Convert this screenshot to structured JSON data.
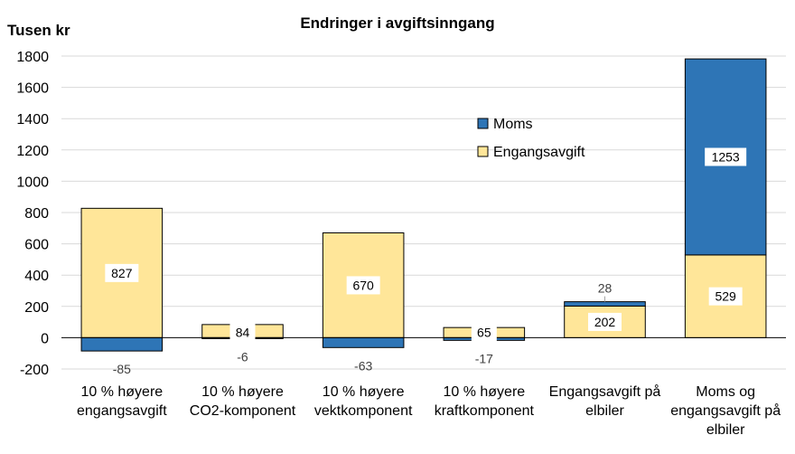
{
  "chart_data": {
    "type": "bar",
    "stacked": true,
    "title": "Endringer  i avgiftsinngang",
    "ylabel": "Tusen kr",
    "ylim": [
      -200,
      1800
    ],
    "yticks": [
      -200,
      0,
      200,
      400,
      600,
      800,
      1000,
      1200,
      1400,
      1600,
      1800
    ],
    "grid": true,
    "legend_position": "center-right",
    "categories": [
      [
        "10 % høyere",
        "engangsavgift"
      ],
      [
        "10 % høyere",
        "CO2-komponent"
      ],
      [
        "10 % høyere",
        "vektkomponent"
      ],
      [
        "10 % høyere",
        "kraftkomponent"
      ],
      [
        "Engangsavgift på",
        "elbiler"
      ],
      [
        "Moms og",
        "engangsavgift på",
        "elbiler"
      ]
    ],
    "series": [
      {
        "name": "Engangsavgift",
        "color": "#FFE699",
        "values": [
          827,
          84,
          670,
          65,
          202,
          529
        ]
      },
      {
        "name": "Moms",
        "color": "#2E75B6",
        "values": [
          -85,
          -6,
          -63,
          -17,
          28,
          1253
        ]
      }
    ]
  }
}
